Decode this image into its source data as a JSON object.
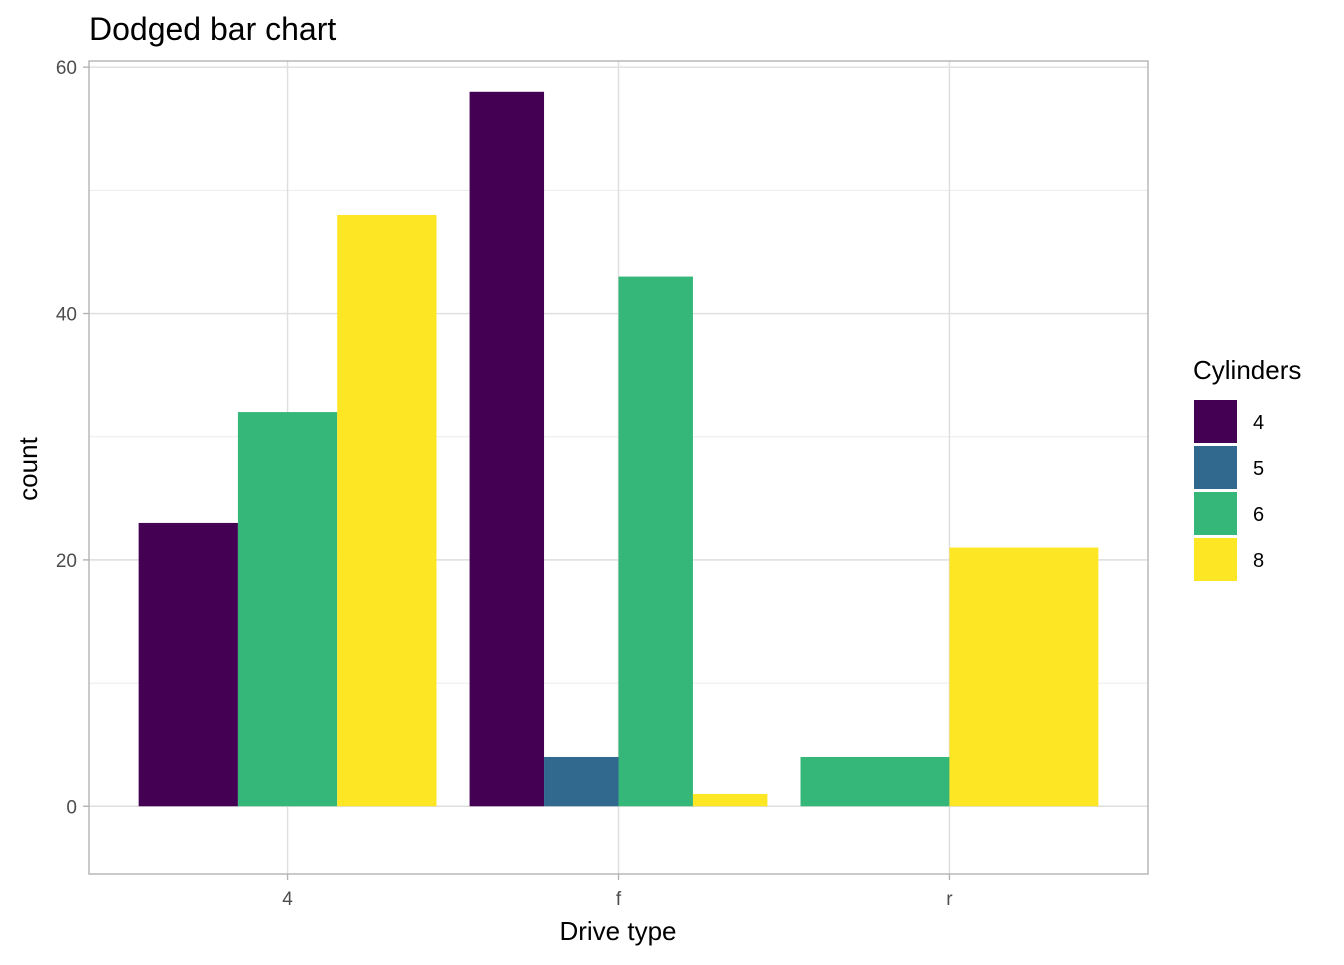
{
  "chart_data": {
    "type": "bar",
    "title": "Dodged bar chart",
    "xlabel": "Drive type",
    "ylabel": "count",
    "categories": [
      "4",
      "f",
      "r"
    ],
    "ylim": [
      -5.5,
      60.5
    ],
    "yticks": [
      0,
      20,
      40,
      60
    ],
    "grid": true,
    "legend": {
      "title": "Cylinders",
      "placement": "right",
      "entries": [
        {
          "label": "4",
          "color": "#440154"
        },
        {
          "label": "5",
          "color": "#31688E"
        },
        {
          "label": "6",
          "color": "#35B779"
        },
        {
          "label": "8",
          "color": "#FDE725"
        }
      ]
    },
    "bars": [
      {
        "category": "4",
        "cyl": "4",
        "value": 23
      },
      {
        "category": "4",
        "cyl": "6",
        "value": 32
      },
      {
        "category": "4",
        "cyl": "8",
        "value": 48
      },
      {
        "category": "f",
        "cyl": "4",
        "value": 58
      },
      {
        "category": "f",
        "cyl": "5",
        "value": 4
      },
      {
        "category": "f",
        "cyl": "6",
        "value": 43
      },
      {
        "category": "f",
        "cyl": "8",
        "value": 1
      },
      {
        "category": "r",
        "cyl": "6",
        "value": 4
      },
      {
        "category": "r",
        "cyl": "8",
        "value": 21
      }
    ]
  }
}
